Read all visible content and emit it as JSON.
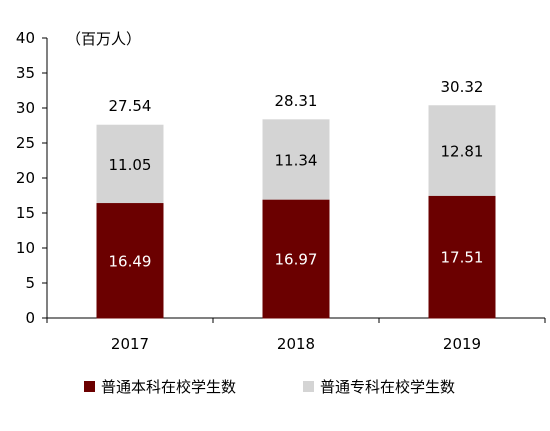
{
  "chart_data": {
    "type": "bar",
    "stacked": true,
    "unit_label": "（百万人）",
    "categories": [
      "2017",
      "2018",
      "2019"
    ],
    "series": [
      {
        "name": "普通本科在校学生数",
        "values": [
          16.49,
          16.97,
          17.51
        ],
        "color": "#6b0000",
        "label_color": "#ffffff"
      },
      {
        "name": "普通专科在校学生数",
        "values": [
          11.05,
          11.34,
          12.81
        ],
        "color": "#d4d4d4",
        "label_color": "#000000"
      }
    ],
    "totals": [
      27.54,
      28.31,
      30.32
    ],
    "ylim": [
      0,
      40
    ],
    "yticks": [
      0,
      5,
      10,
      15,
      20,
      25,
      30,
      35,
      40
    ],
    "grid": false,
    "legend": "bottom"
  }
}
